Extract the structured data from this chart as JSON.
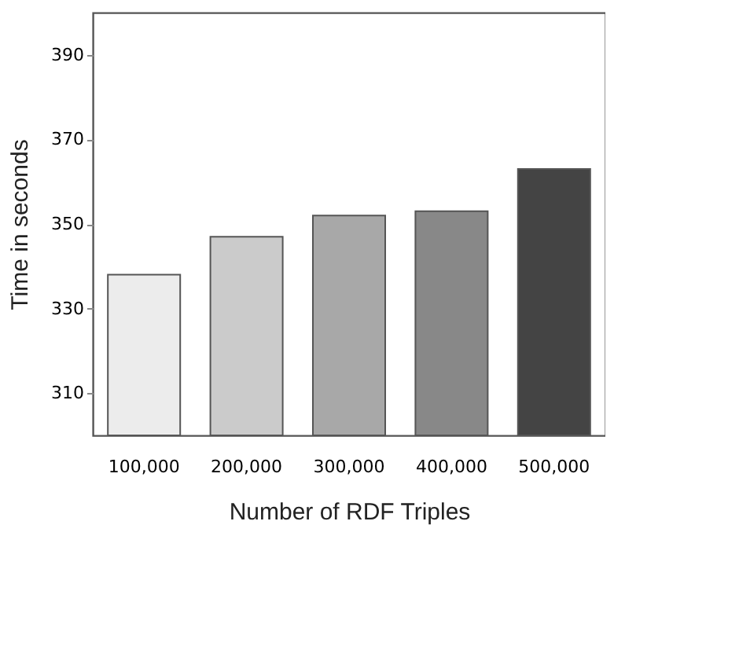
{
  "chart_data": {
    "type": "bar",
    "xlabel": "Number of RDF Triples",
    "ylabel": "Time in seconds",
    "categories": [
      "100,000",
      "200,000",
      "300,000",
      "400,000",
      "500,000"
    ],
    "values": [
      338,
      347,
      352,
      353,
      363
    ],
    "colors": [
      "#ececec",
      "#cbcbcb",
      "#a8a8a8",
      "#888888",
      "#444444"
    ],
    "ylim": [
      300,
      400
    ],
    "yticks": [
      310,
      330,
      350,
      370,
      390
    ],
    "grid": false
  }
}
